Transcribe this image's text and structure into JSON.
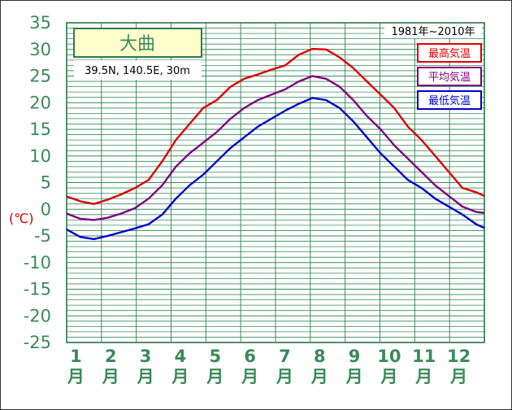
{
  "chart_data": {
    "type": "line",
    "station": "大曲",
    "coords": "39.5N, 140.5E, 30m",
    "period": "1981年~2010年",
    "unit_label": "(℃)",
    "ylim": [
      -25,
      35
    ],
    "yticks": [
      "35",
      "30",
      "25",
      "20",
      "15",
      "10",
      "5",
      "0",
      "-5",
      "-10",
      "-15",
      "-20",
      "-25"
    ],
    "months": [
      {
        "num": "1",
        "kanji": "月"
      },
      {
        "num": "2",
        "kanji": "月"
      },
      {
        "num": "3",
        "kanji": "月"
      },
      {
        "num": "4",
        "kanji": "月"
      },
      {
        "num": "5",
        "kanji": "月"
      },
      {
        "num": "6",
        "kanji": "月"
      },
      {
        "num": "7",
        "kanji": "月"
      },
      {
        "num": "8",
        "kanji": "月"
      },
      {
        "num": "9",
        "kanji": "月"
      },
      {
        "num": "10",
        "kanji": "月"
      },
      {
        "num": "11",
        "kanji": "月"
      },
      {
        "num": "12",
        "kanji": "月"
      }
    ],
    "grid": true,
    "legend_position": "top-right",
    "series": [
      {
        "name": "最高気温",
        "color": "#dd0000",
        "values": [
          [
            1,
            2.4
          ],
          [
            1.5,
            1.5
          ],
          [
            2,
            1.0
          ],
          [
            2.5,
            1.8
          ],
          [
            3,
            2.8
          ],
          [
            3.5,
            4.0
          ],
          [
            4,
            5.5
          ],
          [
            4.5,
            9.0
          ],
          [
            5,
            13.0
          ],
          [
            5.5,
            16.0
          ],
          [
            6,
            19.0
          ],
          [
            6.5,
            20.5
          ],
          [
            7,
            23.0
          ],
          [
            7.5,
            24.5
          ],
          [
            8,
            25.3
          ],
          [
            8.5,
            26.2
          ],
          [
            9,
            27.0
          ],
          [
            9.5,
            29.0
          ],
          [
            10,
            30.1
          ],
          [
            10.5,
            30.0
          ],
          [
            11,
            28.5
          ],
          [
            11.5,
            26.5
          ],
          [
            12,
            24.0
          ],
          [
            12.5,
            21.5
          ],
          [
            13,
            19.0
          ],
          [
            13.5,
            15.5
          ],
          [
            14,
            13.0
          ],
          [
            14.5,
            10.0
          ],
          [
            15,
            7.0
          ],
          [
            15.5,
            4.0
          ],
          [
            16,
            3.2
          ],
          [
            16.3,
            2.5
          ]
        ]
      },
      {
        "name": "平均気温",
        "color": "#800080",
        "values": [
          [
            1,
            -0.8
          ],
          [
            1.5,
            -1.8
          ],
          [
            2,
            -2.0
          ],
          [
            2.5,
            -1.6
          ],
          [
            3,
            -0.8
          ],
          [
            3.5,
            0.2
          ],
          [
            4,
            2.0
          ],
          [
            4.5,
            4.5
          ],
          [
            5,
            8.0
          ],
          [
            5.5,
            10.5
          ],
          [
            6,
            12.5
          ],
          [
            6.5,
            14.5
          ],
          [
            7,
            17.0
          ],
          [
            7.5,
            19.0
          ],
          [
            8,
            20.5
          ],
          [
            8.5,
            21.5
          ],
          [
            9,
            22.5
          ],
          [
            9.5,
            24.0
          ],
          [
            10,
            25.0
          ],
          [
            10.5,
            24.5
          ],
          [
            11,
            23.0
          ],
          [
            11.5,
            20.5
          ],
          [
            12,
            17.5
          ],
          [
            12.5,
            15.0
          ],
          [
            13,
            12.0
          ],
          [
            13.5,
            9.5
          ],
          [
            14,
            7.0
          ],
          [
            14.5,
            4.5
          ],
          [
            15,
            2.5
          ],
          [
            15.5,
            0.5
          ],
          [
            16,
            -0.5
          ],
          [
            16.3,
            -0.7
          ]
        ]
      },
      {
        "name": "最低気温",
        "color": "#0000cc",
        "values": [
          [
            1,
            -3.8
          ],
          [
            1.5,
            -5.2
          ],
          [
            2,
            -5.6
          ],
          [
            2.5,
            -5.0
          ],
          [
            3,
            -4.3
          ],
          [
            3.5,
            -3.6
          ],
          [
            4,
            -2.8
          ],
          [
            4.5,
            -1.0
          ],
          [
            5,
            2.0
          ],
          [
            5.5,
            4.5
          ],
          [
            6,
            6.5
          ],
          [
            6.5,
            9.0
          ],
          [
            7,
            11.5
          ],
          [
            7.5,
            13.5
          ],
          [
            8,
            15.5
          ],
          [
            8.5,
            17.0
          ],
          [
            9,
            18.5
          ],
          [
            9.5,
            19.8
          ],
          [
            10,
            20.9
          ],
          [
            10.5,
            20.5
          ],
          [
            11,
            19.0
          ],
          [
            11.5,
            16.5
          ],
          [
            12,
            13.5
          ],
          [
            12.5,
            10.5
          ],
          [
            13,
            8.0
          ],
          [
            13.5,
            5.5
          ],
          [
            14,
            4.0
          ],
          [
            14.5,
            2.0
          ],
          [
            15,
            0.5
          ],
          [
            15.5,
            -1.0
          ],
          [
            16,
            -2.8
          ],
          [
            16.3,
            -3.5
          ]
        ]
      }
    ]
  }
}
